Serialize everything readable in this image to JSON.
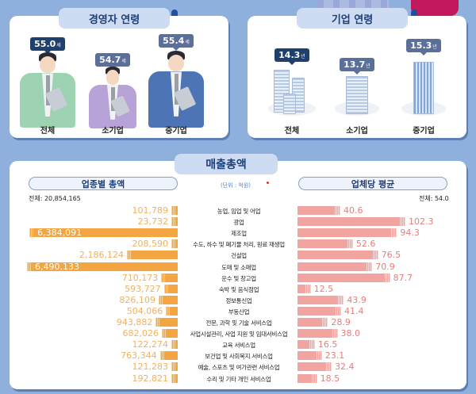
{
  "owner_age": {
    "title": "경영자 연령",
    "unit": "세",
    "items": [
      {
        "label": "전체",
        "value": "55.0"
      },
      {
        "label": "소기업",
        "value": "54.7"
      },
      {
        "label": "중기업",
        "value": "55.4"
      }
    ]
  },
  "company_age": {
    "title": "기업 연령",
    "unit": "년",
    "items": [
      {
        "label": "전체",
        "value": "14.3"
      },
      {
        "label": "소기업",
        "value": "13.7"
      },
      {
        "label": "중기업",
        "value": "15.3"
      }
    ]
  },
  "sales": {
    "title": "매출총액",
    "unit_note": "(단위 : 억원)",
    "left_title": "업종별 총액",
    "left_total": "전체: 20,854,165",
    "right_title": "업체당 평균",
    "right_total": "전체: 54.0"
  },
  "chart_data": [
    {
      "type": "bar",
      "title": "경영자 연령",
      "categories": [
        "전체",
        "소기업",
        "중기업"
      ],
      "values": [
        55.0,
        54.7,
        55.4
      ],
      "ylabel": "세"
    },
    {
      "type": "bar",
      "title": "기업 연령",
      "categories": [
        "전체",
        "소기업",
        "중기업"
      ],
      "values": [
        14.3,
        13.7,
        15.3
      ],
      "ylabel": "년"
    },
    {
      "type": "bar",
      "title": "매출총액 - 업종별 총액 (단위: 억원)",
      "orientation": "horizontal",
      "total": "20,854,165",
      "categories": [
        "농업, 임업 및 어업",
        "광업",
        "제조업",
        "수도, 하수 및 폐기물 처리, 원료 재생업",
        "건설업",
        "도매 및 소매업",
        "운수 및 창고업",
        "숙박 및 음식점업",
        "정보통신업",
        "부동산업",
        "전문, 과학 및 기술 서비스업",
        "사업시설관리, 사업 지원 및 임대서비스업",
        "교육 서비스업",
        "보건업 및 사회복지 서비스업",
        "예술, 스포츠 및 여가관련 서비스업",
        "수리 및 기타 개인 서비스업"
      ],
      "values": [
        101789,
        23732,
        6384091,
        208590,
        2186124,
        6490133,
        710173,
        593727,
        826109,
        504066,
        943882,
        682026,
        122274,
        763344,
        121283,
        192821
      ],
      "labels": [
        "101,789",
        "23,732",
        "6,384,091",
        "208,590",
        "2,186,124",
        "6,490,133",
        "710,173",
        "593,727",
        "826,109",
        "504,066",
        "943,882",
        "682,026",
        "122,274",
        "763,344",
        "121,283",
        "192,821"
      ]
    },
    {
      "type": "bar",
      "title": "매출총액 - 업체당 평균 (단위: 억원)",
      "orientation": "horizontal",
      "total": "54.0",
      "categories": [
        "농업, 임업 및 어업",
        "광업",
        "제조업",
        "수도, 하수 및 폐기물 처리, 원료 재생업",
        "건설업",
        "도매 및 소매업",
        "운수 및 창고업",
        "숙박 및 음식점업",
        "정보통신업",
        "부동산업",
        "전문, 과학 및 기술 서비스업",
        "사업시설관리, 사업 지원 및 임대서비스업",
        "교육 서비스업",
        "보건업 및 사회복지 서비스업",
        "예술, 스포츠 및 여가관련 서비스업",
        "수리 및 기타 개인 서비스업"
      ],
      "values": [
        40.6,
        102.3,
        94.3,
        52.6,
        76.5,
        70.9,
        87.7,
        12.5,
        43.9,
        41.4,
        28.9,
        38.0,
        16.5,
        23.1,
        32.4,
        18.5
      ],
      "labels": [
        "40.6",
        "102.3",
        "94.3",
        "52.6",
        "76.5",
        "70.9",
        "87.7",
        "12.5",
        "43.9",
        "41.4",
        "28.9",
        "38.0",
        "16.5",
        "23.1",
        "32.4",
        "18.5"
      ]
    }
  ],
  "colors": {
    "background": "#8fb0dd",
    "left_bar": "#f2a540",
    "right_bar": "#f2a5a0",
    "title_text": "#1f3f78",
    "badge_dark": "#1f3f6e",
    "badge_mid": "#5a6f9a"
  }
}
